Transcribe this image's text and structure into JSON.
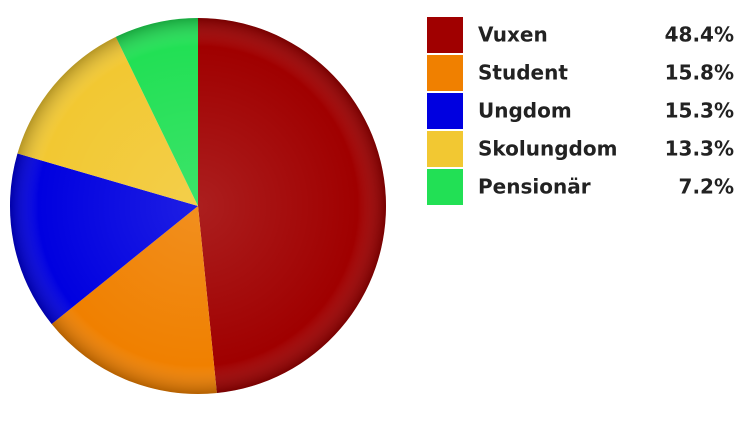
{
  "chart_data": {
    "type": "pie",
    "categories": [
      "Vuxen",
      "Student",
      "Ungdom",
      "Skolungdom",
      "Pensionär"
    ],
    "values": [
      48.4,
      15.8,
      15.3,
      13.3,
      7.2
    ],
    "value_labels": [
      "48.4%",
      "15.8%",
      "15.3%",
      "13.3%",
      "7.2%"
    ],
    "colors": [
      "#a00000",
      "#f08000",
      "#0000e0",
      "#f2c832",
      "#22e055"
    ]
  }
}
